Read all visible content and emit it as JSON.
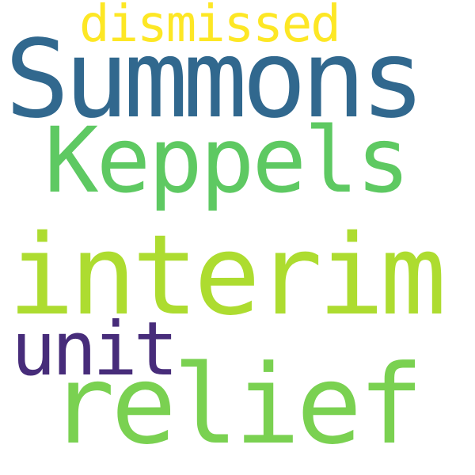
{
  "words": [
    {
      "text": "dismissed",
      "color": "#fde725"
    },
    {
      "text": "Summons",
      "color": "#31688e"
    },
    {
      "text": "Keppels",
      "color": "#5ec962"
    },
    {
      "text": "interim",
      "color": "#addc30"
    },
    {
      "text": "unit",
      "color": "#472c7a"
    },
    {
      "text": "relief",
      "color": "#7ad151"
    }
  ]
}
